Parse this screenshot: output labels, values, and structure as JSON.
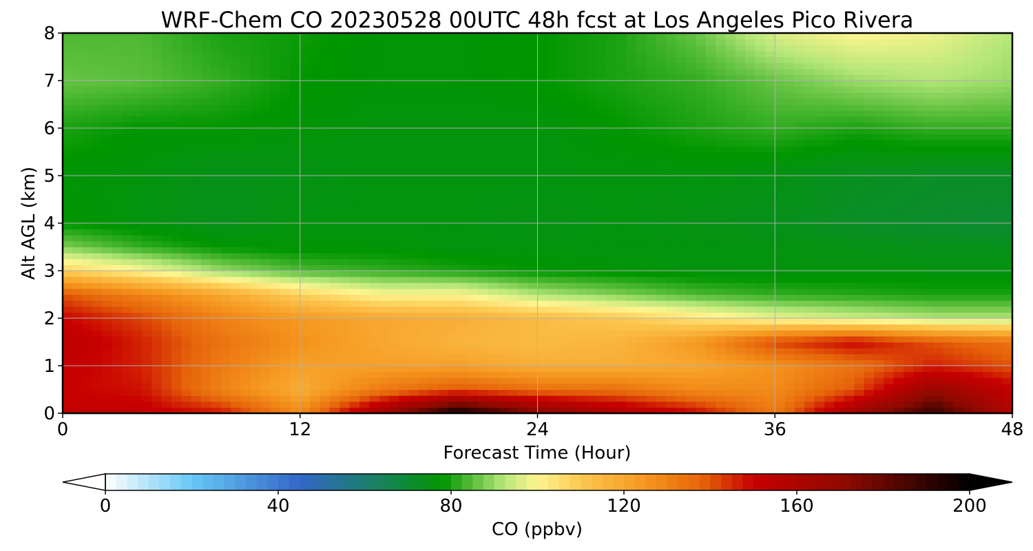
{
  "chart_data": {
    "type": "heatmap",
    "title": "WRF-Chem CO  20230528 00UTC 48h fcst at Los Angeles Pico Rivera",
    "xlabel": "Forecast Time (Hour)",
    "ylabel": "Alt AGL (km)",
    "xlim": [
      0,
      48
    ],
    "ylim": [
      0,
      8
    ],
    "x_ticks": [
      0,
      12,
      24,
      36,
      48
    ],
    "y_ticks": [
      0,
      1,
      2,
      3,
      4,
      5,
      6,
      7,
      8
    ],
    "grid": true,
    "x": [
      0,
      4,
      8,
      12,
      16,
      20,
      24,
      28,
      32,
      36,
      40,
      44,
      48
    ],
    "y": [
      0,
      0.5,
      1,
      1.5,
      2,
      2.5,
      3,
      3.5,
      4,
      5,
      6,
      7,
      8
    ],
    "z": [
      [
        152,
        152,
        148,
        128,
        165,
        200,
        175,
        160,
        150,
        132,
        165,
        190,
        158
      ],
      [
        150,
        148,
        130,
        118,
        132,
        140,
        135,
        135,
        128,
        128,
        140,
        168,
        152
      ],
      [
        152,
        146,
        132,
        122,
        122,
        122,
        118,
        118,
        120,
        126,
        134,
        146,
        140
      ],
      [
        155,
        146,
        134,
        126,
        120,
        116,
        114,
        116,
        124,
        142,
        150,
        140,
        134
      ],
      [
        150,
        142,
        130,
        124,
        120,
        118,
        114,
        110,
        104,
        98,
        95,
        92,
        92
      ],
      [
        140,
        130,
        120,
        108,
        100,
        100,
        92,
        88,
        84,
        82,
        81,
        80,
        80
      ],
      [
        108,
        100,
        90,
        84,
        82,
        80,
        78,
        77,
        76,
        76,
        76,
        76,
        76
      ],
      [
        88,
        82,
        78,
        77,
        77,
        76,
        76,
        76,
        76,
        76,
        75,
        74,
        74
      ],
      [
        78,
        76,
        74,
        76,
        76,
        76,
        75,
        76,
        75,
        74,
        72,
        71,
        70
      ],
      [
        77,
        76,
        74,
        75,
        76,
        76,
        76,
        76,
        76,
        75,
        73,
        72,
        72
      ],
      [
        80,
        78,
        78,
        77,
        76,
        76,
        76,
        78,
        80,
        82,
        80,
        82,
        82
      ],
      [
        86,
        85,
        82,
        78,
        77,
        77,
        78,
        80,
        82,
        86,
        90,
        92,
        90
      ],
      [
        84,
        84,
        80,
        79,
        77,
        77,
        78,
        80,
        86,
        96,
        100,
        98,
        92
      ]
    ],
    "colorbar": {
      "label": "CO  (ppbv)",
      "min": 0,
      "max": 200,
      "ticks": [
        0,
        40,
        80,
        120,
        160,
        200
      ],
      "extend": "both",
      "color_stops": [
        {
          "v": 0,
          "c": "#ffffff"
        },
        {
          "v": 20,
          "c": "#66c8f5"
        },
        {
          "v": 45,
          "c": "#3366c8"
        },
        {
          "v": 62,
          "c": "#1a8066"
        },
        {
          "v": 78,
          "c": "#009600"
        },
        {
          "v": 92,
          "c": "#b4e678"
        },
        {
          "v": 100,
          "c": "#fff590"
        },
        {
          "v": 110,
          "c": "#fcc850"
        },
        {
          "v": 125,
          "c": "#f5961e"
        },
        {
          "v": 138,
          "c": "#e6640a"
        },
        {
          "v": 150,
          "c": "#c80000"
        },
        {
          "v": 172,
          "c": "#8c0a00"
        },
        {
          "v": 200,
          "c": "#000000"
        }
      ]
    }
  }
}
